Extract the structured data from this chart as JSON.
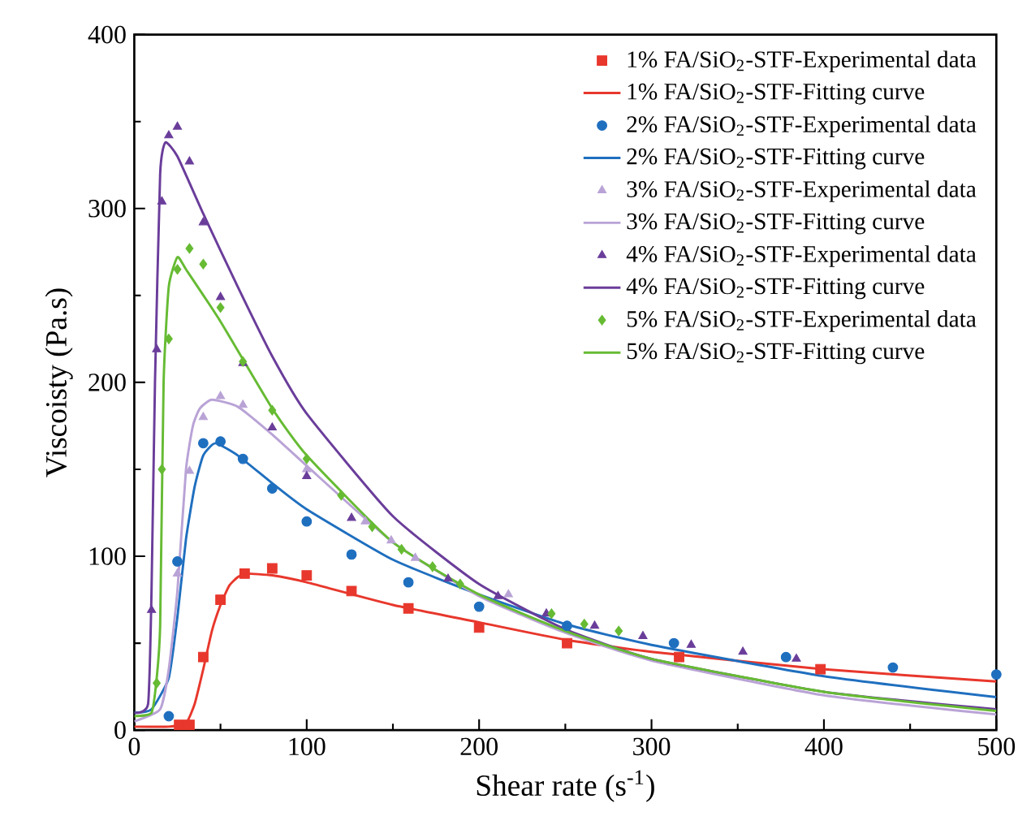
{
  "chart_data": {
    "type": "scatter",
    "xlabel": "Shear rate (s$^{-1}$)",
    "ylabel": "Viscoisty (Pa.s)",
    "xlim": [
      0,
      500
    ],
    "ylim": [
      0,
      400
    ],
    "xticks": [
      0,
      100,
      200,
      300,
      400,
      500
    ],
    "yticks": [
      0,
      100,
      200,
      300,
      400
    ],
    "legend": "top right",
    "grid": false,
    "series": [
      {
        "name": "1% FA/SiO$_{2}$-STF-Experimental data",
        "marker": "square",
        "color": "#e8372c",
        "x": [
          26,
          32,
          40,
          50,
          64,
          80,
          100,
          126,
          159,
          200,
          251,
          316,
          398
        ],
        "values": [
          3,
          3,
          42,
          75,
          90,
          93,
          89,
          80,
          70,
          59,
          50,
          42,
          35
        ]
      },
      {
        "name": "1% FA/SiO$_{2}$-STF-Fitting curve",
        "type": "line",
        "marker": "none",
        "color": "#e8372c",
        "x": [
          0,
          20,
          30,
          35,
          40,
          45,
          50,
          55,
          60,
          65,
          80,
          100,
          150,
          200,
          250,
          300,
          400,
          500
        ],
        "values": [
          2,
          2,
          4,
          15,
          35,
          57,
          72,
          83,
          88,
          90,
          89,
          85,
          72,
          62,
          52,
          45,
          35,
          28
        ]
      },
      {
        "name": "2% FA/SiO$_{2}$-STF-Experimental data",
        "marker": "circle",
        "color": "#1f6fbf",
        "x": [
          20,
          25,
          40,
          50,
          63,
          80,
          100,
          126,
          159,
          200,
          251,
          313,
          378,
          440,
          500
        ],
        "values": [
          8,
          97,
          165,
          166,
          156,
          139,
          120,
          101,
          85,
          71,
          60,
          50,
          42,
          36,
          32
        ]
      },
      {
        "name": "2% FA/SiO$_{2}$-STF-Fitting curve",
        "type": "line",
        "marker": "none",
        "color": "#1f6fbf",
        "x": [
          0,
          10,
          20,
          25,
          30,
          35,
          40,
          47,
          60,
          80,
          100,
          150,
          200,
          250,
          300,
          400,
          500
        ],
        "values": [
          10,
          12,
          30,
          65,
          110,
          140,
          158,
          165,
          158,
          142,
          127,
          98,
          78,
          61,
          49,
          31,
          19
        ]
      },
      {
        "name": "3% FA/SiO$_{2}$-STF-Experimental data",
        "marker": "triangle",
        "color": "#b9a3d6",
        "x": [
          25,
          32,
          40,
          50,
          63,
          100,
          134,
          149,
          163,
          217
        ],
        "values": [
          90,
          149,
          180,
          192,
          187,
          150,
          120,
          109,
          99,
          78
        ]
      },
      {
        "name": "3% FA/SiO$_{2}$-STF-Fitting curve",
        "type": "line",
        "marker": "none",
        "color": "#b9a3d6",
        "x": [
          0,
          15,
          20,
          25,
          30,
          34,
          38,
          45,
          60,
          80,
          100,
          150,
          200,
          250,
          300,
          400,
          500
        ],
        "values": [
          5,
          12,
          35,
          80,
          150,
          175,
          185,
          190,
          186,
          170,
          152,
          108,
          77,
          56,
          40,
          20,
          9
        ]
      },
      {
        "name": "4% FA/SiO$_{2}$-STF-Experimental data",
        "marker": "triangle",
        "color": "#6a3d9a",
        "x": [
          10,
          13,
          16,
          20,
          25,
          32,
          40,
          50,
          63,
          80,
          100,
          126,
          182,
          211,
          239,
          267,
          295,
          323,
          353,
          384
        ],
        "values": [
          69,
          219,
          304,
          342,
          347,
          327,
          292,
          249,
          211,
          174,
          146,
          122,
          87,
          77,
          67,
          60,
          54,
          49,
          45,
          41
        ]
      },
      {
        "name": "4% FA/SiO$_{2}$-STF-Fitting curve",
        "type": "line",
        "marker": "none",
        "color": "#6a3d9a",
        "x": [
          0,
          8,
          10,
          12,
          15,
          18,
          25,
          40,
          60,
          80,
          100,
          150,
          200,
          250,
          300,
          400,
          500
        ],
        "values": [
          10,
          15,
          80,
          200,
          320,
          338,
          330,
          297,
          255,
          215,
          182,
          123,
          84,
          58,
          41,
          22,
          12
        ]
      },
      {
        "name": "5% FA/SiO$_{2}$-STF-Experimental data",
        "marker": "diamond",
        "color": "#66bb33",
        "x": [
          13,
          16,
          20,
          25,
          32,
          40,
          50,
          63,
          80,
          100,
          120,
          138,
          155,
          173,
          189,
          242,
          261,
          281
        ],
        "values": [
          27,
          150,
          225,
          265,
          277,
          268,
          243,
          212,
          184,
          156,
          135,
          117,
          104,
          94,
          84,
          67,
          61,
          57
        ]
      },
      {
        "name": "5% FA/SiO$_{2}$-STF-Fitting curve",
        "type": "line",
        "marker": "none",
        "color": "#66bb33",
        "x": [
          0,
          10,
          13,
          15,
          17,
          20,
          25,
          30,
          50,
          80,
          100,
          150,
          200,
          250,
          300,
          400,
          500
        ],
        "values": [
          8,
          10,
          30,
          60,
          200,
          255,
          272,
          265,
          235,
          185,
          158,
          108,
          78,
          57,
          41,
          22,
          11
        ]
      }
    ]
  }
}
